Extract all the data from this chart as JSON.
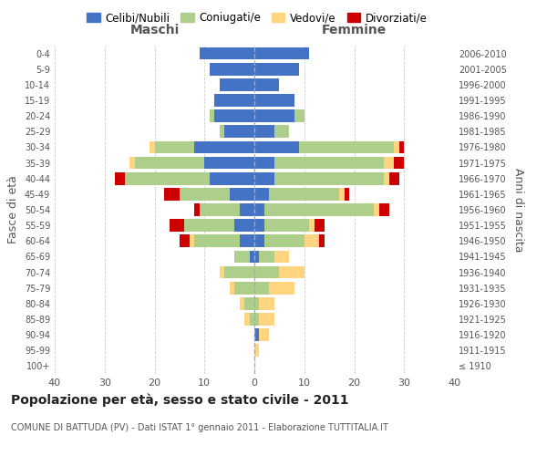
{
  "age_groups": [
    "100+",
    "95-99",
    "90-94",
    "85-89",
    "80-84",
    "75-79",
    "70-74",
    "65-69",
    "60-64",
    "55-59",
    "50-54",
    "45-49",
    "40-44",
    "35-39",
    "30-34",
    "25-29",
    "20-24",
    "15-19",
    "10-14",
    "5-9",
    "0-4"
  ],
  "birth_years": [
    "≤ 1910",
    "1911-1915",
    "1916-1920",
    "1921-1925",
    "1926-1930",
    "1931-1935",
    "1936-1940",
    "1941-1945",
    "1946-1950",
    "1951-1955",
    "1956-1960",
    "1961-1965",
    "1966-1970",
    "1971-1975",
    "1976-1980",
    "1981-1985",
    "1986-1990",
    "1991-1995",
    "1996-2000",
    "2001-2005",
    "2006-2010"
  ],
  "maschi": {
    "celibi": [
      0,
      0,
      0,
      0,
      0,
      0,
      0,
      1,
      3,
      4,
      3,
      5,
      9,
      10,
      12,
      6,
      8,
      8,
      7,
      9,
      11
    ],
    "coniugati": [
      0,
      0,
      0,
      1,
      2,
      4,
      6,
      3,
      9,
      10,
      8,
      10,
      17,
      14,
      8,
      1,
      1,
      0,
      0,
      0,
      0
    ],
    "vedovi": [
      0,
      0,
      0,
      1,
      1,
      1,
      1,
      0,
      1,
      0,
      0,
      0,
      0,
      1,
      1,
      0,
      0,
      0,
      0,
      0,
      0
    ],
    "divorziati": [
      0,
      0,
      0,
      0,
      0,
      0,
      0,
      0,
      2,
      3,
      1,
      3,
      2,
      0,
      0,
      0,
      0,
      0,
      0,
      0,
      0
    ]
  },
  "femmine": {
    "nubili": [
      0,
      0,
      1,
      0,
      0,
      0,
      0,
      1,
      2,
      2,
      2,
      3,
      4,
      4,
      9,
      4,
      8,
      8,
      5,
      9,
      11
    ],
    "coniugate": [
      0,
      0,
      0,
      1,
      1,
      3,
      5,
      3,
      8,
      9,
      22,
      14,
      22,
      22,
      19,
      3,
      2,
      0,
      0,
      0,
      0
    ],
    "vedove": [
      0,
      1,
      2,
      3,
      3,
      5,
      5,
      3,
      3,
      1,
      1,
      1,
      1,
      2,
      1,
      0,
      0,
      0,
      0,
      0,
      0
    ],
    "divorziate": [
      0,
      0,
      0,
      0,
      0,
      0,
      0,
      0,
      1,
      2,
      2,
      1,
      2,
      2,
      1,
      0,
      0,
      0,
      0,
      0,
      0
    ]
  },
  "colors": {
    "celibi": "#4472C4",
    "coniugati": "#AECF8C",
    "vedovi": "#FFD580",
    "divorziati": "#CC0000"
  },
  "xlim": 40,
  "title": "Popolazione per età, sesso e stato civile - 2011",
  "subtitle": "COMUNE DI BATTUDA (PV) - Dati ISTAT 1° gennaio 2011 - Elaborazione TUTTITALIA.IT",
  "ylabel_left": "Fasce di età",
  "ylabel_right": "Anni di nascita",
  "legend_labels": [
    "Celibi/Nubili",
    "Coniugati/e",
    "Vedovi/e",
    "Divorziati/e"
  ]
}
